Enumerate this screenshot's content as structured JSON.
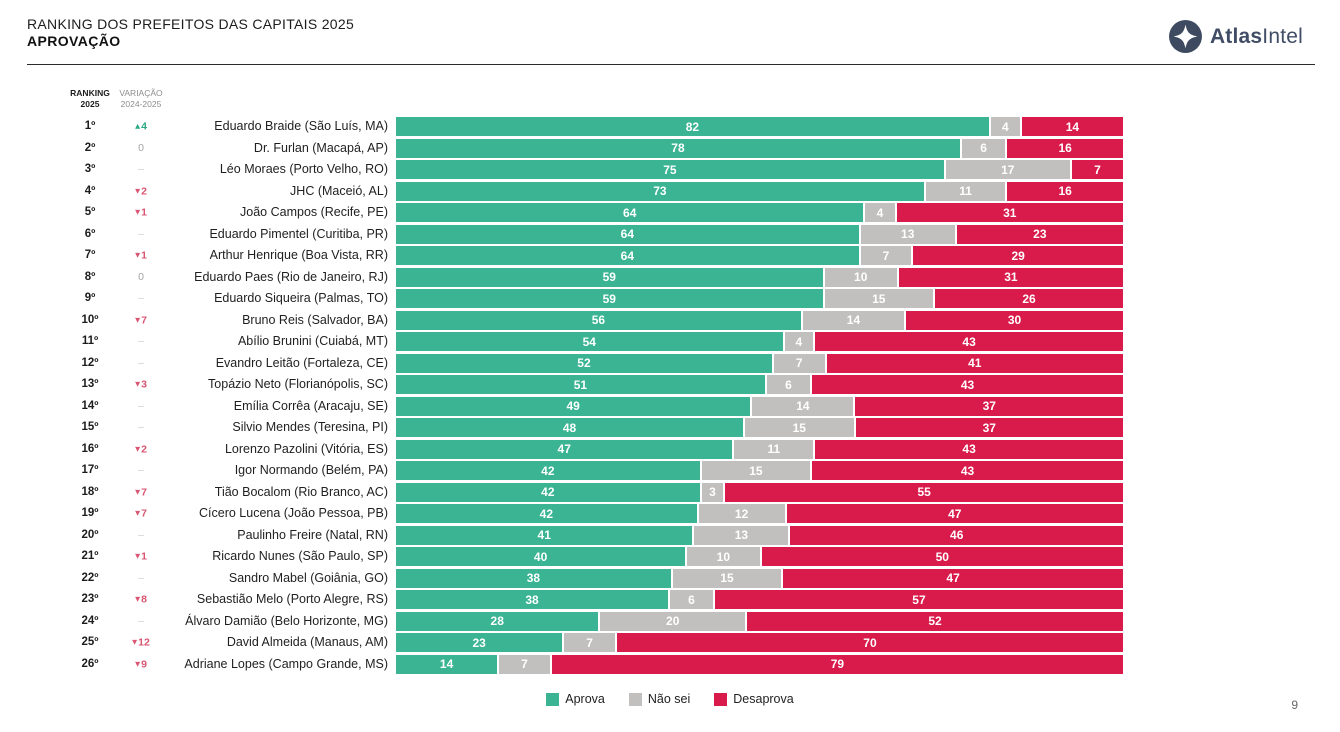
{
  "header": {
    "title_line1": "RANKING DOS PREFEITOS DAS CAPITAIS 2025",
    "title_line2": "APROVAÇÃO",
    "logo_bold": "Atlas",
    "logo_regular": "Intel"
  },
  "columns": {
    "ranking_line1": "RANKING",
    "ranking_line2": "2025",
    "variation_line1": "VARIAÇÃO",
    "variation_line2": "2024-2025"
  },
  "chart_data": {
    "type": "bar",
    "orientation": "horizontal",
    "stacked": true,
    "normalized_to_100": true,
    "series_names": [
      "Aprova",
      "Não sei",
      "Desaprova"
    ],
    "colors": [
      "#3ab493",
      "#c1c0be",
      "#d91b4b"
    ],
    "segment_keys": [
      "aprova",
      "nao-sei",
      "desaprova"
    ],
    "rows": [
      {
        "rank": "1º",
        "variation": {
          "dir": "up",
          "val": "4"
        },
        "name": "Eduardo Braide (São Luís, MA)",
        "values": [
          82,
          4,
          14
        ]
      },
      {
        "rank": "2º",
        "variation": {
          "dir": "zero",
          "val": "0"
        },
        "name": "Dr. Furlan (Macapá, AP)",
        "values": [
          78,
          6,
          16
        ]
      },
      {
        "rank": "3º",
        "variation": {
          "dir": "none",
          "val": "–"
        },
        "name": "Léo Moraes (Porto Velho, RO)",
        "values": [
          75,
          17,
          7
        ]
      },
      {
        "rank": "4º",
        "variation": {
          "dir": "down",
          "val": "2"
        },
        "name": "JHC (Maceió, AL)",
        "values": [
          73,
          11,
          16
        ]
      },
      {
        "rank": "5º",
        "variation": {
          "dir": "down",
          "val": "1"
        },
        "name": "João Campos (Recife, PE)",
        "values": [
          64,
          4,
          31
        ]
      },
      {
        "rank": "6º",
        "variation": {
          "dir": "none",
          "val": "–"
        },
        "name": "Eduardo Pimentel (Curitiba, PR)",
        "values": [
          64,
          13,
          23
        ]
      },
      {
        "rank": "7º",
        "variation": {
          "dir": "down",
          "val": "1"
        },
        "name": "Arthur Henrique (Boa Vista, RR)",
        "values": [
          64,
          7,
          29
        ]
      },
      {
        "rank": "8º",
        "variation": {
          "dir": "zero",
          "val": "0"
        },
        "name": "Eduardo Paes (Rio de Janeiro, RJ)",
        "values": [
          59,
          10,
          31
        ]
      },
      {
        "rank": "9º",
        "variation": {
          "dir": "none",
          "val": "–"
        },
        "name": "Eduardo Siqueira (Palmas, TO)",
        "values": [
          59,
          15,
          26
        ]
      },
      {
        "rank": "10º",
        "variation": {
          "dir": "down",
          "val": "7"
        },
        "name": "Bruno Reis (Salvador, BA)",
        "values": [
          56,
          14,
          30
        ]
      },
      {
        "rank": "11º",
        "variation": {
          "dir": "none",
          "val": "–"
        },
        "name": "Abílio Brunini (Cuiabá, MT)",
        "values": [
          54,
          4,
          43
        ]
      },
      {
        "rank": "12º",
        "variation": {
          "dir": "none",
          "val": "–"
        },
        "name": "Evandro Leitão (Fortaleza, CE)",
        "values": [
          52,
          7,
          41
        ]
      },
      {
        "rank": "13º",
        "variation": {
          "dir": "down",
          "val": "3"
        },
        "name": "Topázio Neto (Florianópolis, SC)",
        "values": [
          51,
          6,
          43
        ]
      },
      {
        "rank": "14º",
        "variation": {
          "dir": "none",
          "val": "–"
        },
        "name": "Emília Corrêa (Aracaju, SE)",
        "values": [
          49,
          14,
          37
        ]
      },
      {
        "rank": "15º",
        "variation": {
          "dir": "none",
          "val": "–"
        },
        "name": "Silvio Mendes (Teresina, PI)",
        "values": [
          48,
          15,
          37
        ]
      },
      {
        "rank": "16º",
        "variation": {
          "dir": "down",
          "val": "2"
        },
        "name": "Lorenzo Pazolini (Vitória, ES)",
        "values": [
          47,
          11,
          43
        ]
      },
      {
        "rank": "17º",
        "variation": {
          "dir": "none",
          "val": "–"
        },
        "name": "Igor Normando (Belém, PA)",
        "values": [
          42,
          15,
          43
        ]
      },
      {
        "rank": "18º",
        "variation": {
          "dir": "down",
          "val": "7"
        },
        "name": "Tião Bocalom (Rio Branco, AC)",
        "values": [
          42,
          3,
          55
        ]
      },
      {
        "rank": "19º",
        "variation": {
          "dir": "down",
          "val": "7"
        },
        "name": "Cícero Lucena (João Pessoa, PB)",
        "values": [
          42,
          12,
          47
        ]
      },
      {
        "rank": "20º",
        "variation": {
          "dir": "none",
          "val": "–"
        },
        "name": "Paulinho Freire (Natal, RN)",
        "values": [
          41,
          13,
          46
        ]
      },
      {
        "rank": "21º",
        "variation": {
          "dir": "down",
          "val": "1"
        },
        "name": "Ricardo Nunes (São Paulo, SP)",
        "values": [
          40,
          10,
          50
        ]
      },
      {
        "rank": "22º",
        "variation": {
          "dir": "none",
          "val": "–"
        },
        "name": "Sandro Mabel (Goiânia, GO)",
        "values": [
          38,
          15,
          47
        ]
      },
      {
        "rank": "23º",
        "variation": {
          "dir": "down",
          "val": "8"
        },
        "name": "Sebastião Melo (Porto Alegre, RS)",
        "values": [
          38,
          6,
          57
        ]
      },
      {
        "rank": "24º",
        "variation": {
          "dir": "none",
          "val": "–"
        },
        "name": "Álvaro Damião (Belo Horizonte, MG)",
        "values": [
          28,
          20,
          52
        ]
      },
      {
        "rank": "25º",
        "variation": {
          "dir": "down",
          "val": "12"
        },
        "name": "David Almeida (Manaus, AM)",
        "values": [
          23,
          7,
          70
        ]
      },
      {
        "rank": "26º",
        "variation": {
          "dir": "down",
          "val": "9"
        },
        "name": "Adriane Lopes (Campo Grande, MS)",
        "values": [
          14,
          7,
          79
        ]
      }
    ]
  },
  "legend": [
    {
      "label": "Aprova",
      "color": "#3ab493"
    },
    {
      "label": "Não sei",
      "color": "#c1c0be"
    },
    {
      "label": "Desaprova",
      "color": "#d91b4b"
    }
  ],
  "page_number": "9"
}
